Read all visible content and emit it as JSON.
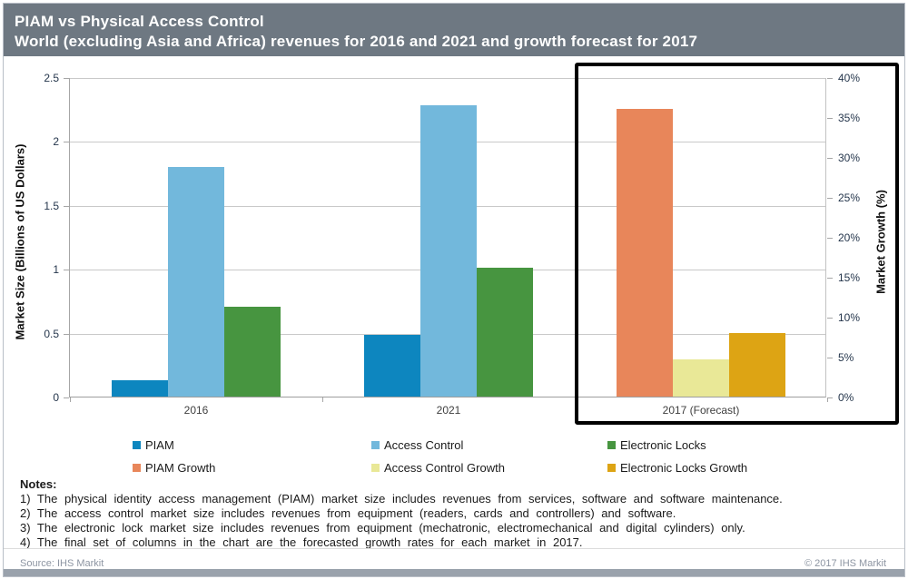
{
  "header": {
    "title_line1": "PIAM vs Physical Access Control",
    "title_line2": "World (excluding Asia and Africa) revenues for 2016 and 2021 and growth forecast for 2017"
  },
  "chart_data": {
    "type": "bar",
    "title": "PIAM vs Physical Access Control",
    "subtitle": "World (excluding Asia and Africa) revenues for 2016 and 2021 and growth forecast for 2017",
    "categories": [
      "2016",
      "2021",
      "2017 (Forecast)"
    ],
    "left_axis": {
      "label": "Market Size (Billions of US Dollars)",
      "min": 0,
      "max": 2.5,
      "tick_labels": [
        "2.5",
        "2",
        "1.5",
        "1",
        "0.5",
        "0"
      ]
    },
    "right_axis": {
      "label": "Market Growth (%)",
      "min": 0,
      "max": 40,
      "tick_labels": [
        "40%",
        "35%",
        "30%",
        "25%",
        "20%",
        "15%",
        "10%",
        "5%",
        "0%"
      ]
    },
    "grid": true,
    "legend_position": "bottom",
    "groups": [
      {
        "category": "2016",
        "axis": "left",
        "bars": [
          {
            "series": "PIAM",
            "value": 0.13
          },
          {
            "series": "Access Control",
            "value": 1.8
          },
          {
            "series": "Electronic Locks",
            "value": 0.7
          }
        ]
      },
      {
        "category": "2021",
        "axis": "left",
        "bars": [
          {
            "series": "PIAM",
            "value": 0.48
          },
          {
            "series": "Access Control",
            "value": 2.28
          },
          {
            "series": "Electronic Locks",
            "value": 1.01
          }
        ]
      },
      {
        "category": "2017 (Forecast)",
        "axis": "right",
        "bars": [
          {
            "series": "PIAM Growth",
            "value": 36
          },
          {
            "series": "Access Control Growth",
            "value": 4.7
          },
          {
            "series": "Electronic Locks Growth",
            "value": 8
          }
        ]
      }
    ],
    "highlighted_category": "2017 (Forecast)"
  },
  "legend": {
    "items": [
      {
        "label": "PIAM",
        "color": "#0d86bf"
      },
      {
        "label": "Access Control",
        "color": "#72b8dc"
      },
      {
        "label": "Electronic Locks",
        "color": "#479540"
      },
      {
        "label": "PIAM Growth",
        "color": "#e8865a"
      },
      {
        "label": "Access Control Growth",
        "color": "#e9e897"
      },
      {
        "label": "Electronic Locks Growth",
        "color": "#dda414"
      }
    ]
  },
  "notes": {
    "heading": "Notes:",
    "items": [
      "1) The physical identity access management (PIAM) market size includes revenues from services, software and software maintenance.",
      "2) The access control market size includes revenues from equipment (readers, cards and controllers) and software.",
      "3) The electronic lock market size includes revenues from equipment (mechatronic, electromechanical and digital cylinders) only.",
      "4) The final set of columns in the chart are the forecasted growth rates for each market in 2017."
    ]
  },
  "footer": {
    "source": "Source: IHS Markit",
    "copyright": "© 2017 IHS Markit"
  }
}
